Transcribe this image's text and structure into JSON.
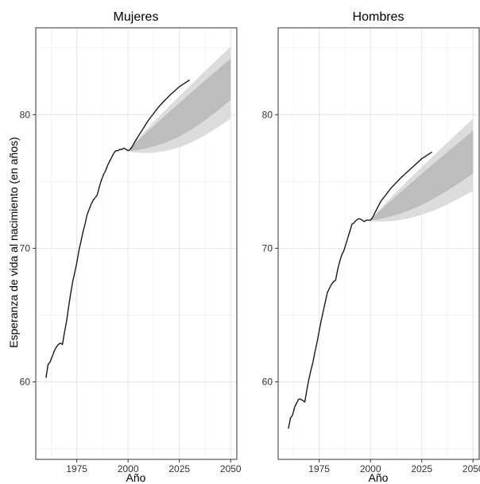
{
  "chart_data": {
    "type": "line",
    "ylabel": "Esperanza de vida al nacimiento (en años)",
    "xlabel": "Año",
    "xlim": [
      1955,
      2053
    ],
    "ylim": [
      54.2,
      86.5
    ],
    "x_ticks": [
      1975,
      2000,
      2025,
      2050
    ],
    "y_ticks": [
      60,
      70,
      80
    ],
    "grid": true,
    "colors": {
      "line": "#1a1a1a",
      "band_outer": "#dcdcdc",
      "band_inner": "#bdbdbd",
      "grid": "#ececec",
      "border": "#333333"
    },
    "panels": [
      {
        "title": "Mujeres",
        "series": [
          {
            "values": [
              [
                1960,
                60.3
              ],
              [
                1961,
                61.3
              ],
              [
                1962,
                61.5
              ],
              [
                1963,
                61.9
              ],
              [
                1964,
                62.3
              ],
              [
                1965,
                62.6
              ],
              [
                1966,
                62.8
              ],
              [
                1967,
                62.9
              ],
              [
                1968,
                62.8
              ],
              [
                1969,
                63.7
              ],
              [
                1970,
                64.5
              ],
              [
                1971,
                65.6
              ],
              [
                1972,
                66.6
              ],
              [
                1973,
                67.5
              ],
              [
                1974,
                68.2
              ],
              [
                1975,
                68.9
              ],
              [
                1976,
                69.8
              ],
              [
                1977,
                70.5
              ],
              [
                1978,
                71.2
              ],
              [
                1979,
                71.8
              ],
              [
                1980,
                72.5
              ],
              [
                1981,
                72.9
              ],
              [
                1982,
                73.3
              ],
              [
                1983,
                73.6
              ],
              [
                1984,
                73.8
              ],
              [
                1985,
                74.0
              ],
              [
                1986,
                74.6
              ],
              [
                1987,
                75.1
              ],
              [
                1988,
                75.5
              ],
              [
                1989,
                75.8
              ],
              [
                1990,
                76.2
              ],
              [
                1991,
                76.5
              ],
              [
                1992,
                76.8
              ],
              [
                1993,
                77.1
              ],
              [
                1994,
                77.3
              ],
              [
                1995,
                77.3
              ],
              [
                1996,
                77.4
              ],
              [
                1997,
                77.4
              ],
              [
                1998,
                77.5
              ],
              [
                1999,
                77.4
              ],
              [
                2000,
                77.3
              ],
              [
                2001,
                77.4
              ],
              [
                2002,
                77.6
              ],
              [
                2003,
                77.9
              ],
              [
                2005,
                78.4
              ],
              [
                2010,
                79.6
              ],
              [
                2015,
                80.6
              ],
              [
                2020,
                81.4
              ],
              [
                2025,
                82.1
              ],
              [
                2030,
                82.6
              ]
            ]
          }
        ],
        "forecast": {
          "start": 2000,
          "mean_end": 82.6,
          "inner_end": [
            81.1,
            84.2
          ],
          "outer_end": [
            79.7,
            85.1
          ],
          "dip": 0.9
        }
      },
      {
        "title": "Hombres",
        "series": [
          {
            "values": [
              [
                1960,
                56.5
              ],
              [
                1961,
                57.3
              ],
              [
                1962,
                57.5
              ],
              [
                1963,
                58.1
              ],
              [
                1964,
                58.4
              ],
              [
                1965,
                58.7
              ],
              [
                1966,
                58.7
              ],
              [
                1967,
                58.6
              ],
              [
                1968,
                58.5
              ],
              [
                1969,
                59.4
              ],
              [
                1970,
                60.2
              ],
              [
                1971,
                60.9
              ],
              [
                1972,
                61.5
              ],
              [
                1973,
                62.3
              ],
              [
                1974,
                63.0
              ],
              [
                1975,
                63.8
              ],
              [
                1976,
                64.6
              ],
              [
                1977,
                65.3
              ],
              [
                1978,
                66.0
              ],
              [
                1979,
                66.7
              ],
              [
                1980,
                67.0
              ],
              [
                1981,
                67.3
              ],
              [
                1982,
                67.5
              ],
              [
                1983,
                67.6
              ],
              [
                1984,
                68.4
              ],
              [
                1985,
                69.0
              ],
              [
                1986,
                69.5
              ],
              [
                1987,
                69.8
              ],
              [
                1988,
                70.3
              ],
              [
                1989,
                70.8
              ],
              [
                1990,
                71.3
              ],
              [
                1991,
                71.8
              ],
              [
                1992,
                71.9
              ],
              [
                1993,
                72.1
              ],
              [
                1994,
                72.2
              ],
              [
                1995,
                72.2
              ],
              [
                1996,
                72.1
              ],
              [
                1997,
                72.0
              ],
              [
                1998,
                72.1
              ],
              [
                1999,
                72.1
              ],
              [
                2000,
                72.1
              ],
              [
                2001,
                72.3
              ],
              [
                2002,
                72.6
              ],
              [
                2003,
                72.9
              ],
              [
                2005,
                73.5
              ],
              [
                2010,
                74.5
              ],
              [
                2015,
                75.3
              ],
              [
                2020,
                76.0
              ],
              [
                2025,
                76.7
              ],
              [
                2030,
                77.2
              ]
            ]
          }
        ],
        "forecast": {
          "start": 2000,
          "mean_end": 77.2,
          "inner_end": [
            75.6,
            78.8
          ],
          "outer_end": [
            74.3,
            79.7
          ],
          "dip": 0.6
        }
      }
    ]
  }
}
